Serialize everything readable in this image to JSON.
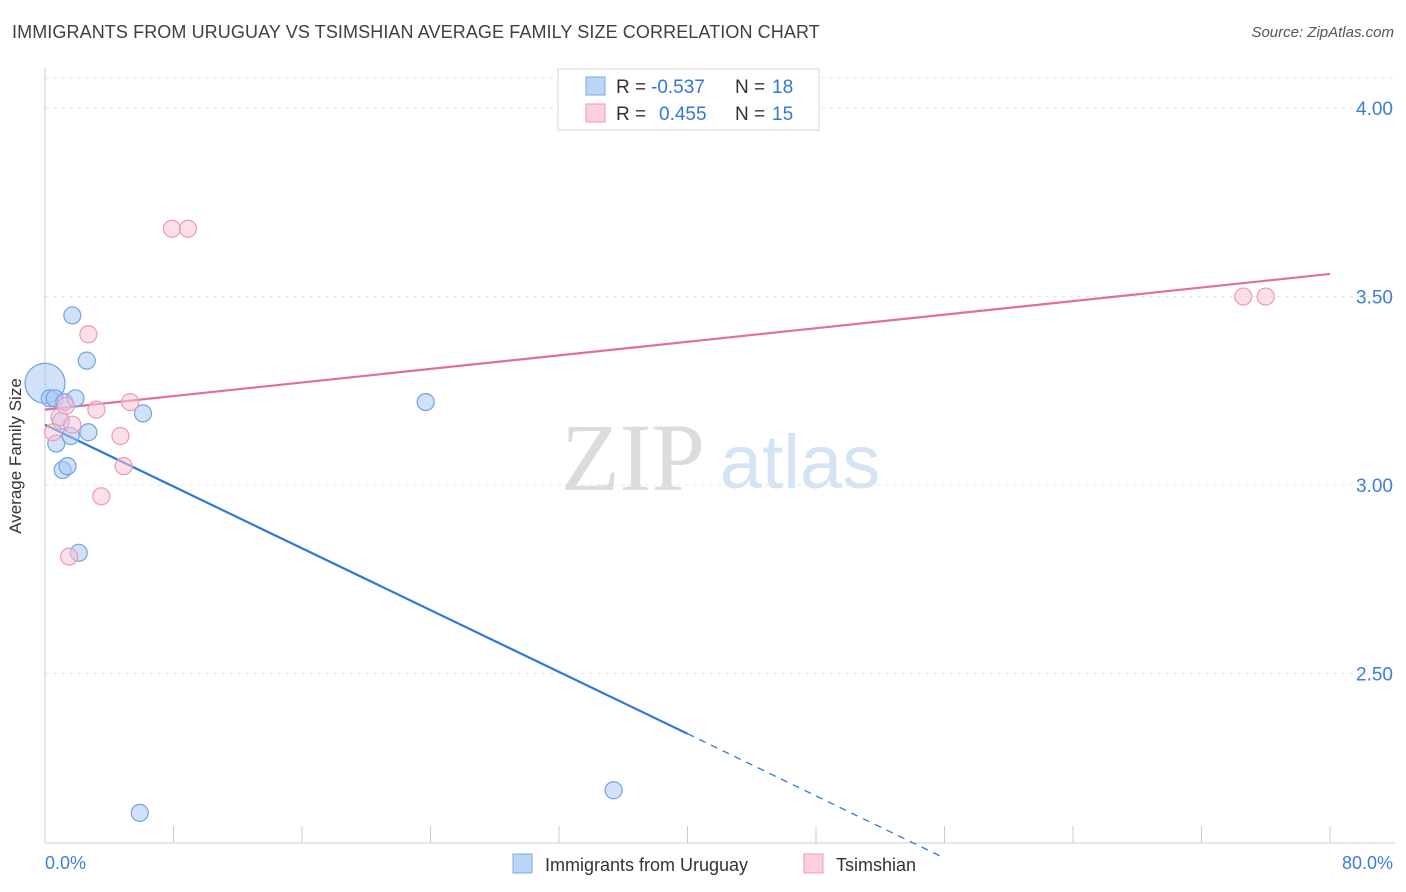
{
  "title": "IMMIGRANTS FROM URUGUAY VS TSIMSHIAN AVERAGE FAMILY SIZE CORRELATION CHART",
  "source": "Source: ZipAtlas.com",
  "watermark": {
    "zip": "ZIP",
    "atlas": "atlas"
  },
  "chart_data": {
    "type": "scatter",
    "xlabel": "",
    "ylabel": "Average Family Size",
    "xlim": [
      0,
      80
    ],
    "ylim": [
      2.05,
      4.08
    ],
    "x_tick_labels": [
      "0.0%",
      "80.0%"
    ],
    "y_ticks": [
      2.5,
      3.0,
      3.5,
      4.0
    ],
    "y_tick_labels": [
      "2.50",
      "3.00",
      "3.50",
      "4.00"
    ],
    "grid": true,
    "legend_position": "top-center",
    "stats": [
      {
        "r_label": "R =",
        "r_value": "-0.537",
        "n_label": "N =",
        "n_value": "18"
      },
      {
        "r_label": "R =",
        "r_value": "0.455",
        "n_label": "N =",
        "n_value": "15"
      }
    ],
    "series": [
      {
        "name": "Immigrants from Uruguay",
        "color": "#6fa3e8",
        "fill": "#a9c8f3",
        "line_color": "#2f79d6",
        "points": [
          {
            "x": 0.0,
            "y": 3.27,
            "big": true
          },
          {
            "x": 0.3,
            "y": 3.23
          },
          {
            "x": 0.6,
            "y": 3.23
          },
          {
            "x": 0.7,
            "y": 3.11
          },
          {
            "x": 1.0,
            "y": 3.17
          },
          {
            "x": 1.2,
            "y": 3.22
          },
          {
            "x": 1.1,
            "y": 3.04
          },
          {
            "x": 1.4,
            "y": 3.05
          },
          {
            "x": 1.6,
            "y": 3.13
          },
          {
            "x": 1.7,
            "y": 3.45
          },
          {
            "x": 1.9,
            "y": 3.23
          },
          {
            "x": 2.1,
            "y": 2.82
          },
          {
            "x": 2.6,
            "y": 3.33
          },
          {
            "x": 2.7,
            "y": 3.14
          },
          {
            "x": 6.1,
            "y": 3.19
          },
          {
            "x": 5.9,
            "y": 2.13
          },
          {
            "x": 23.7,
            "y": 3.22
          },
          {
            "x": 35.4,
            "y": 2.19
          }
        ],
        "trend": {
          "x0": 0.0,
          "y0": 3.16,
          "x1": 40.0,
          "y1": 2.34,
          "dash_x1": 56.0,
          "dash_y1": 2.01
        }
      },
      {
        "name": "Tsimshian",
        "color": "#f099b4",
        "fill": "#f8c6d5",
        "line_color": "#e36f98",
        "points": [
          {
            "x": 0.5,
            "y": 3.14
          },
          {
            "x": 0.9,
            "y": 3.18
          },
          {
            "x": 1.3,
            "y": 3.21
          },
          {
            "x": 1.5,
            "y": 2.81
          },
          {
            "x": 1.7,
            "y": 3.16
          },
          {
            "x": 2.7,
            "y": 3.4
          },
          {
            "x": 3.2,
            "y": 3.2
          },
          {
            "x": 3.5,
            "y": 2.97
          },
          {
            "x": 4.7,
            "y": 3.13
          },
          {
            "x": 4.9,
            "y": 3.05
          },
          {
            "x": 5.3,
            "y": 3.22
          },
          {
            "x": 7.9,
            "y": 3.68
          },
          {
            "x": 8.9,
            "y": 3.68
          },
          {
            "x": 74.6,
            "y": 3.5
          },
          {
            "x": 76.0,
            "y": 3.5
          }
        ],
        "trend": {
          "x0": 0.0,
          "y0": 3.2,
          "x1": 80.0,
          "y1": 3.56
        }
      }
    ]
  }
}
